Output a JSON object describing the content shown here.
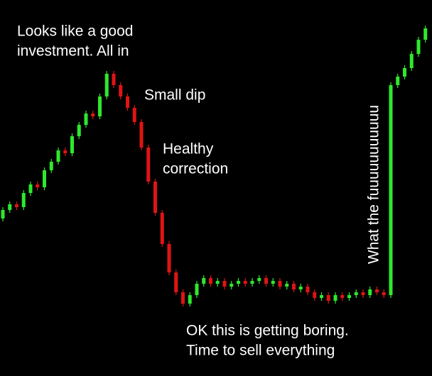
{
  "chart_data": {
    "type": "candlestick",
    "open": [
      33,
      36,
      38,
      37,
      42,
      45,
      44,
      50,
      53,
      57,
      56,
      62,
      66,
      70,
      69,
      76,
      84,
      80,
      76,
      72,
      67,
      58,
      46,
      35,
      24,
      14,
      7,
      3,
      6,
      10,
      12,
      10,
      11,
      9,
      10,
      11,
      10,
      11,
      12,
      10,
      11,
      9,
      10,
      8,
      9,
      7,
      5,
      6,
      4,
      6,
      5,
      6,
      7,
      6,
      8,
      7,
      6,
      80,
      83,
      86,
      91,
      96
    ],
    "high": [
      37,
      39,
      39,
      43,
      46,
      46,
      51,
      54,
      58,
      58,
      63,
      67,
      71,
      71,
      77,
      85,
      85,
      81,
      77,
      73,
      68,
      59,
      47,
      36,
      25,
      15,
      8,
      7,
      11,
      13,
      13,
      12,
      12,
      11,
      12,
      12,
      12,
      13,
      13,
      12,
      12,
      11,
      11,
      10,
      10,
      8,
      7,
      7,
      7,
      7,
      7,
      8,
      8,
      9,
      9,
      8,
      81,
      84,
      87,
      92,
      97,
      101
    ],
    "low": [
      32,
      35,
      36,
      36,
      41,
      43,
      43,
      49,
      52,
      55,
      55,
      61,
      65,
      68,
      68,
      75,
      79,
      75,
      71,
      66,
      57,
      45,
      34,
      23,
      13,
      6,
      2,
      2,
      5,
      9,
      9,
      9,
      8,
      8,
      9,
      9,
      9,
      10,
      9,
      9,
      8,
      8,
      7,
      7,
      6,
      4,
      4,
      3,
      3,
      4,
      4,
      5,
      5,
      5,
      6,
      5,
      5,
      79,
      82,
      85,
      90,
      95
    ],
    "close": [
      36,
      38,
      37,
      42,
      45,
      44,
      50,
      53,
      57,
      56,
      62,
      66,
      70,
      69,
      76,
      84,
      80,
      76,
      72,
      67,
      58,
      46,
      35,
      24,
      14,
      7,
      3,
      6,
      10,
      12,
      10,
      11,
      9,
      10,
      11,
      10,
      11,
      12,
      10,
      11,
      9,
      10,
      8,
      9,
      7,
      5,
      6,
      4,
      6,
      5,
      6,
      7,
      6,
      8,
      7,
      6,
      80,
      83,
      86,
      91,
      96,
      100
    ],
    "up_color": "#2ee82e",
    "down_color": "#e01414",
    "ylim": [
      0,
      100
    ],
    "annotations": [
      {
        "lines": [
          "Looks like a good",
          "investment. All in"
        ]
      },
      {
        "lines": [
          "Small dip"
        ]
      },
      {
        "lines": [
          "Healthy",
          "correction"
        ]
      },
      {
        "lines": [
          "OK this is getting boring.",
          "Time to sell everything"
        ]
      },
      {
        "lines": [
          "What the fuuuuuuuuuuu"
        ]
      }
    ]
  }
}
